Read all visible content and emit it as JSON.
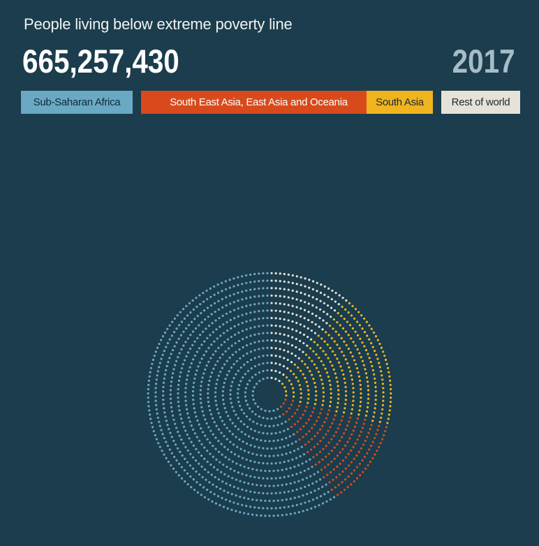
{
  "header": {
    "title": "People living below extreme poverty line",
    "total": "665,257,430",
    "year": "2017"
  },
  "legend": [
    {
      "label": "Sub-Saharan Africa",
      "color": "#6aa9c4",
      "text_color": "#0f2b38"
    },
    {
      "label": "South East Asia, East Asia and Oceania",
      "color": "#d84a1b",
      "text_color": "#ffffff"
    },
    {
      "label": "South Asia",
      "color": "#f0b41f",
      "text_color": "#1b2a30"
    },
    {
      "label": "Rest of world",
      "color": "#e6e2d8",
      "text_color": "#1b2a30"
    }
  ],
  "chart_data": {
    "type": "pie",
    "style": "radial dot plot",
    "total": 665257430,
    "year": 2017,
    "categories": [
      "Sub-Saharan Africa",
      "South East Asia, East Asia and Oceania",
      "South Asia",
      "Rest of world"
    ],
    "values": [
      0.59,
      0.12,
      0.18,
      0.11
    ],
    "value_unit": "share of total",
    "start_angle_deg": 180,
    "direction": "counterclockwise",
    "colors": [
      "#6aa9c4",
      "#d84a1b",
      "#f0b41f",
      "#e6e2d8"
    ]
  }
}
